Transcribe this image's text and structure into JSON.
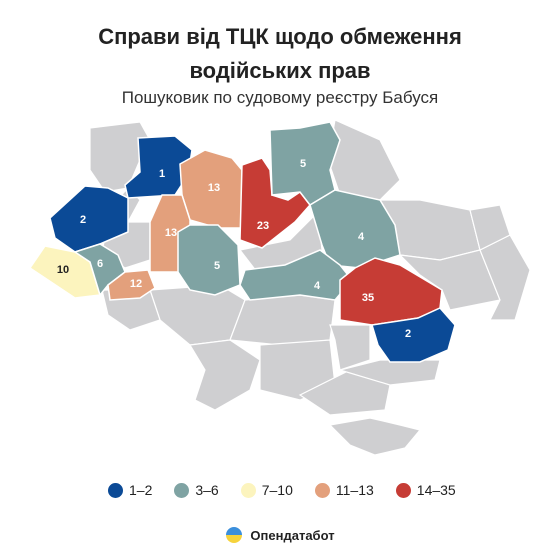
{
  "title_line1": "Справи від ТЦК щодо обмеження",
  "title_line2": "водійських прав",
  "subtitle": "Пошуковик по судовому реєстру Бабуся",
  "colors": {
    "base": "#cfcfd1",
    "border": "#ffffff",
    "1-2": "#0b4a96",
    "3-6": "#7fa3a3",
    "7-10": "#fcf4be",
    "11-13": "#e3a07c",
    "14-35": "#c63c35"
  },
  "legend": [
    {
      "label": "1–2",
      "key": "1-2"
    },
    {
      "label": "3–6",
      "key": "3-6"
    },
    {
      "label": "7–10",
      "key": "7-10"
    },
    {
      "label": "11–13",
      "key": "11–13"
    },
    {
      "label": "14–35",
      "key": "14-35"
    }
  ],
  "regions": [
    {
      "value": "1",
      "bin": "1-2"
    },
    {
      "value": "2",
      "bin": "1-2"
    },
    {
      "value": "10",
      "bin": "7-10"
    },
    {
      "value": "6",
      "bin": "3-6"
    },
    {
      "value": "12",
      "bin": "11-13"
    },
    {
      "value": "13",
      "bin": "11-13"
    },
    {
      "value": "13",
      "bin": "11-13"
    },
    {
      "value": "5",
      "bin": "3-6"
    },
    {
      "value": "23",
      "bin": "14-35"
    },
    {
      "value": "5",
      "bin": "3-6"
    },
    {
      "value": "4",
      "bin": "3-6"
    },
    {
      "value": "4",
      "bin": "3-6"
    },
    {
      "value": "35",
      "bin": "14-35"
    },
    {
      "value": "2",
      "bin": "1-2"
    }
  ],
  "brand": "Опендатабот",
  "icon": "opendatabot-logo-icon"
}
